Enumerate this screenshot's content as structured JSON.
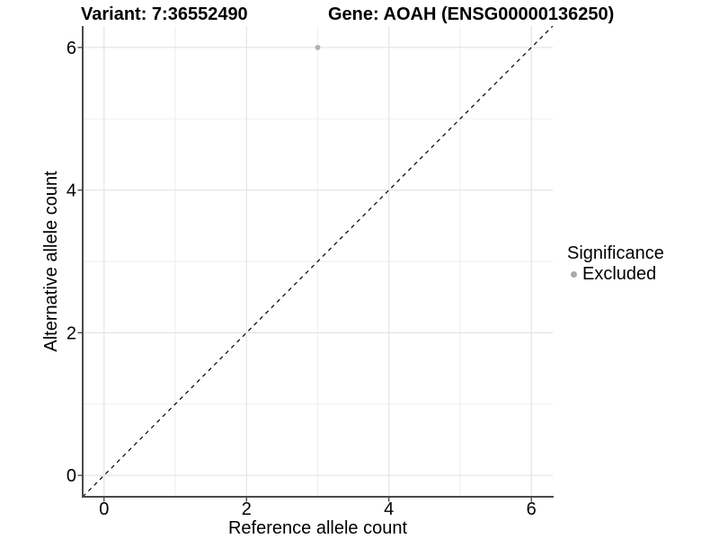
{
  "chart_data": {
    "type": "scatter",
    "title_left": "Variant: 7:36552490",
    "title_right": "Gene: AOAH (ENSG00000136250)",
    "xlabel": "Reference allele count",
    "ylabel": "Alternative allele count",
    "xlim": [
      -0.3,
      6.3
    ],
    "ylim": [
      -0.3,
      6.3
    ],
    "x_ticks": [
      0,
      2,
      4,
      6
    ],
    "y_ticks": [
      0,
      2,
      4,
      6
    ],
    "x_minor_ticks": [
      1,
      3,
      5
    ],
    "y_minor_ticks": [
      1,
      3,
      5
    ],
    "grid": true,
    "series": [
      {
        "name": "Excluded",
        "color": "#b3b3b3",
        "points": [
          {
            "x": 3,
            "y": 6
          }
        ]
      }
    ],
    "identity_line": {
      "style": "dashed",
      "from": [
        -0.3,
        -0.3
      ],
      "to": [
        6.3,
        6.3
      ],
      "color": "#000000"
    },
    "legend": {
      "title": "Significance",
      "position": "right",
      "items": [
        {
          "label": "Excluded",
          "color": "#aaaaaa"
        }
      ]
    },
    "colors": {
      "background": "#ffffff",
      "grid_major": "#e3e3e3",
      "grid_minor": "#eeeeee",
      "axis_line": "#4a4a4a",
      "tick_mark": "#333333",
      "text": "#000000"
    }
  }
}
